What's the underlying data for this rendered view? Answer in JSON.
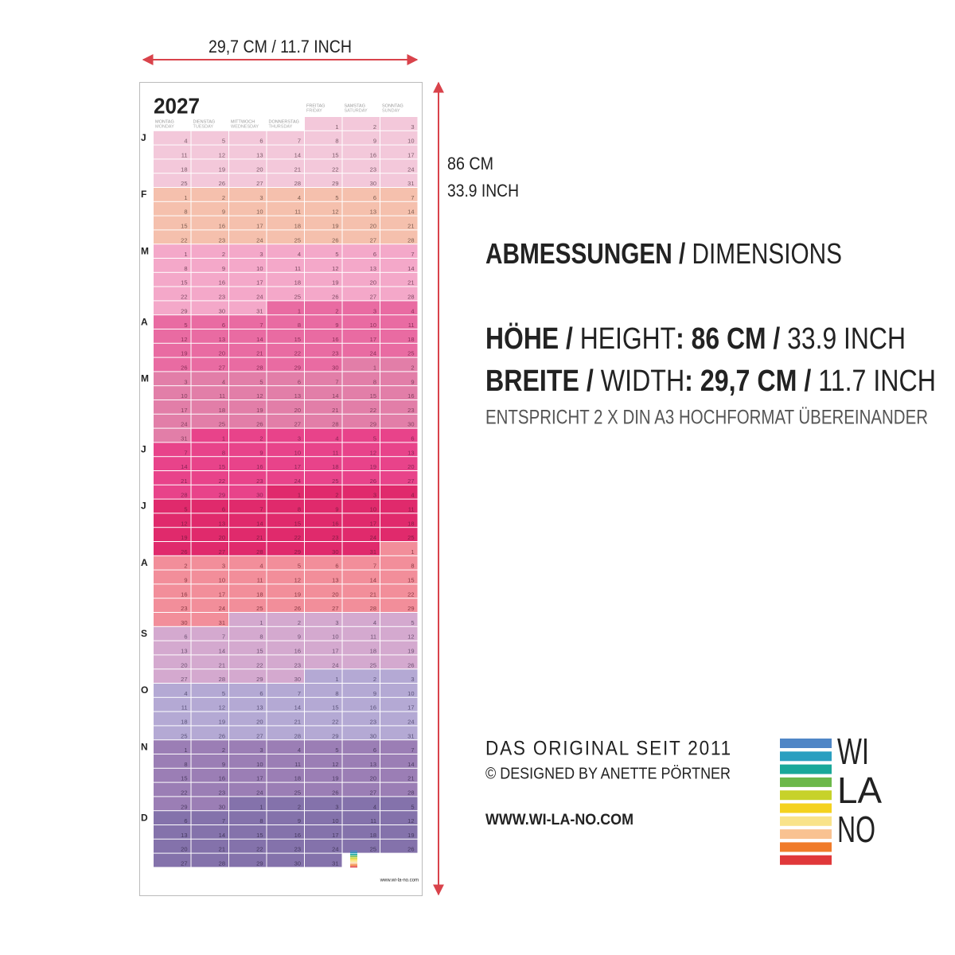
{
  "dimensions": {
    "width_label": "29,7 CM / 11.7 INCH",
    "height_cm": "86 CM",
    "height_inch": "33.9 INCH"
  },
  "info": {
    "heading": [
      {
        "text": "ABMESSUNGEN /",
        "bold": true
      },
      {
        "text": " DIMENSIONS",
        "bold": false
      }
    ],
    "height": [
      {
        "text": "HÖHE /",
        "bold": true
      },
      {
        "text": " HEIGHT",
        "bold": false
      },
      {
        "text": ": 86 CM /",
        "bold": true
      },
      {
        "text": " 33.9 INCH",
        "bold": false
      }
    ],
    "width": [
      {
        "text": "BREITE /",
        "bold": true
      },
      {
        "text": " WIDTH",
        "bold": false
      },
      {
        "text": ": 29,7 CM /",
        "bold": true
      },
      {
        "text": " 11.7 INCH",
        "bold": false
      }
    ],
    "note": "ENTSPRICHT 2 X DIN A3 HOCHFORMAT ÜBEREINANDER"
  },
  "brand": {
    "since": "DAS ORIGINAL SEIT 2011",
    "designer": "© DESIGNED BY ANETTE PÖRTNER",
    "website": "WWW.WI-LA-NO.COM",
    "logo": [
      "WI",
      "LA",
      "NO"
    ]
  },
  "calendar": {
    "year": "2027",
    "weekdays_de": [
      "MONTAG",
      "DIENSTAG",
      "MITTWOCH",
      "DONNERSTAG",
      "FREITAG",
      "SAMSTAG",
      "SONNTAG"
    ],
    "weekdays_en": [
      "MONDAY",
      "TUESDAY",
      "WEDNESDAY",
      "THURSDAY",
      "FRIDAY",
      "SATURDAY",
      "SUNDAY"
    ],
    "months": [
      "J",
      "F",
      "M",
      "A",
      "M",
      "J",
      "J",
      "A",
      "S",
      "O",
      "N",
      "D"
    ],
    "website": "www.wi-la-no.com",
    "weeks": [
      [
        null,
        null,
        null,
        null,
        1,
        2,
        3
      ],
      [
        4,
        5,
        6,
        7,
        8,
        9,
        10
      ],
      [
        11,
        12,
        13,
        14,
        15,
        16,
        17
      ],
      [
        18,
        19,
        20,
        21,
        22,
        23,
        24
      ],
      [
        25,
        26,
        27,
        28,
        29,
        30,
        31
      ],
      [
        1,
        2,
        3,
        4,
        5,
        6,
        7
      ],
      [
        8,
        9,
        10,
        11,
        12,
        13,
        14
      ],
      [
        15,
        16,
        17,
        18,
        19,
        20,
        21
      ],
      [
        22,
        23,
        24,
        25,
        26,
        27,
        28
      ],
      [
        1,
        2,
        3,
        4,
        5,
        6,
        7
      ],
      [
        8,
        9,
        10,
        11,
        12,
        13,
        14
      ],
      [
        15,
        16,
        17,
        18,
        19,
        20,
        21
      ],
      [
        22,
        23,
        24,
        25,
        26,
        27,
        28
      ],
      [
        29,
        30,
        31,
        1,
        2,
        3,
        4
      ],
      [
        5,
        6,
        7,
        8,
        9,
        10,
        11
      ],
      [
        12,
        13,
        14,
        15,
        16,
        17,
        18
      ],
      [
        19,
        20,
        21,
        22,
        23,
        24,
        25
      ],
      [
        26,
        27,
        28,
        29,
        30,
        1,
        2
      ],
      [
        3,
        4,
        5,
        6,
        7,
        8,
        9
      ],
      [
        10,
        11,
        12,
        13,
        14,
        15,
        16
      ],
      [
        17,
        18,
        19,
        20,
        21,
        22,
        23
      ],
      [
        24,
        25,
        26,
        27,
        28,
        29,
        30
      ],
      [
        31,
        1,
        2,
        3,
        4,
        5,
        6
      ],
      [
        7,
        8,
        9,
        10,
        11,
        12,
        13
      ],
      [
        14,
        15,
        16,
        17,
        18,
        19,
        20
      ],
      [
        21,
        22,
        23,
        24,
        25,
        26,
        27
      ],
      [
        28,
        29,
        30,
        1,
        2,
        3,
        4
      ],
      [
        5,
        6,
        7,
        8,
        9,
        10,
        11
      ],
      [
        12,
        13,
        14,
        15,
        16,
        17,
        18
      ],
      [
        19,
        20,
        21,
        22,
        23,
        24,
        25
      ],
      [
        26,
        27,
        28,
        29,
        30,
        31,
        1
      ],
      [
        2,
        3,
        4,
        5,
        6,
        7,
        8
      ],
      [
        9,
        10,
        11,
        12,
        13,
        14,
        15
      ],
      [
        16,
        17,
        18,
        19,
        20,
        21,
        22
      ],
      [
        23,
        24,
        25,
        26,
        27,
        28,
        29
      ],
      [
        30,
        31,
        1,
        2,
        3,
        4,
        5
      ],
      [
        6,
        7,
        8,
        9,
        10,
        11,
        12
      ],
      [
        13,
        14,
        15,
        16,
        17,
        18,
        19
      ],
      [
        20,
        21,
        22,
        23,
        24,
        25,
        26
      ],
      [
        27,
        28,
        29,
        30,
        1,
        2,
        3
      ],
      [
        4,
        5,
        6,
        7,
        8,
        9,
        10
      ],
      [
        11,
        12,
        13,
        14,
        15,
        16,
        17
      ],
      [
        18,
        19,
        20,
        21,
        22,
        23,
        24
      ],
      [
        25,
        26,
        27,
        28,
        29,
        30,
        31
      ],
      [
        1,
        2,
        3,
        4,
        5,
        6,
        7
      ],
      [
        8,
        9,
        10,
        11,
        12,
        13,
        14
      ],
      [
        15,
        16,
        17,
        18,
        19,
        20,
        21
      ],
      [
        22,
        23,
        24,
        25,
        26,
        27,
        28
      ],
      [
        29,
        30,
        1,
        2,
        3,
        4,
        5
      ],
      [
        6,
        7,
        8,
        9,
        10,
        11,
        12
      ],
      [
        13,
        14,
        15,
        16,
        17,
        18,
        19
      ],
      [
        20,
        21,
        22,
        23,
        24,
        25,
        26
      ],
      [
        27,
        28,
        29,
        30,
        31,
        null,
        null
      ]
    ]
  }
}
